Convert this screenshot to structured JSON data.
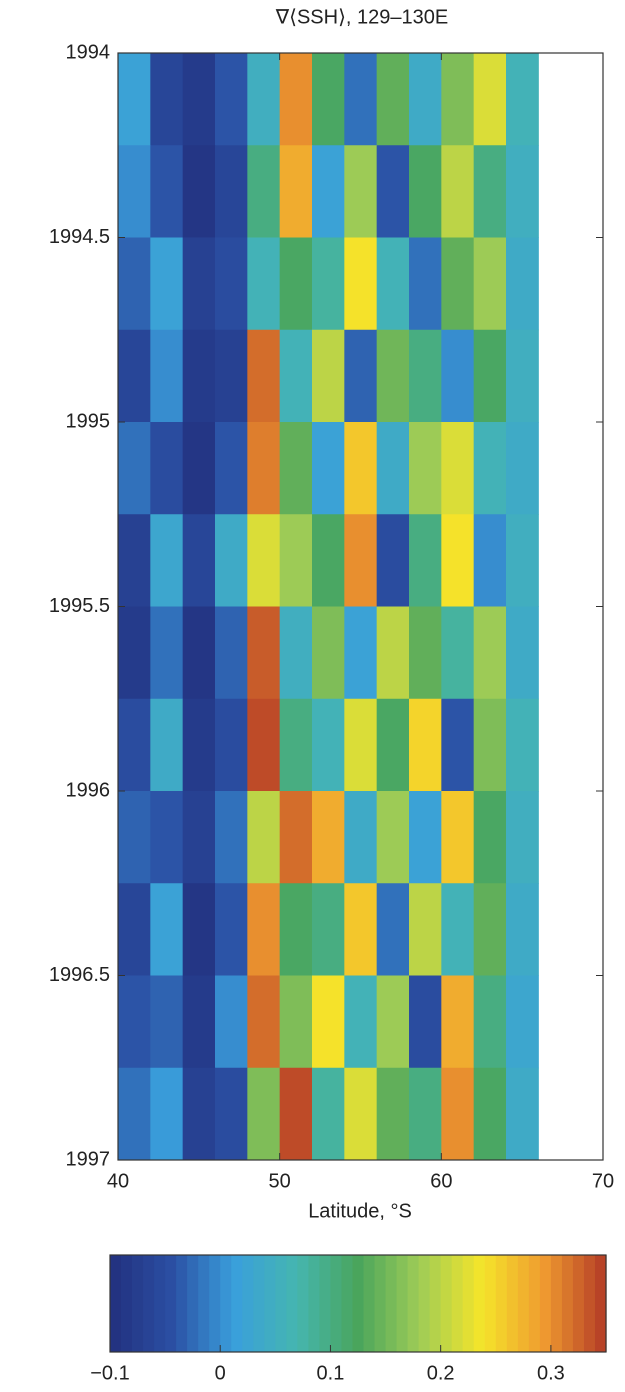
{
  "chart_data": {
    "type": "heatmap",
    "title": "∇⟨SSH⟩, 129–130E",
    "xlabel": "Latitude, °S",
    "x": [
      41,
      43,
      45,
      47,
      49,
      51,
      53,
      55,
      57,
      59,
      61,
      63,
      65
    ],
    "y": [
      1994.125,
      1994.375,
      1994.625,
      1994.875,
      1995.125,
      1995.375,
      1995.625,
      1995.875,
      1996.125,
      1996.375,
      1996.625,
      1996.875
    ],
    "values": [
      [
        0.02,
        -0.06,
        -0.08,
        -0.04,
        0.05,
        0.3,
        0.12,
        -0.02,
        0.14,
        0.04,
        0.16,
        0.22,
        0.06
      ],
      [
        0.0,
        -0.04,
        -0.09,
        -0.06,
        0.1,
        0.28,
        0.02,
        0.18,
        -0.04,
        0.12,
        0.2,
        0.1,
        0.05
      ],
      [
        -0.03,
        0.02,
        -0.07,
        -0.05,
        0.06,
        0.12,
        0.08,
        0.24,
        0.06,
        -0.02,
        0.14,
        0.18,
        0.04
      ],
      [
        -0.06,
        0.0,
        -0.08,
        -0.07,
        0.32,
        0.06,
        0.2,
        -0.03,
        0.15,
        0.1,
        0.0,
        0.12,
        0.05
      ],
      [
        -0.02,
        -0.05,
        -0.09,
        -0.04,
        0.31,
        0.14,
        0.02,
        0.26,
        0.04,
        0.18,
        0.22,
        0.06,
        0.04
      ],
      [
        -0.07,
        0.03,
        -0.06,
        0.04,
        0.22,
        0.18,
        0.12,
        0.3,
        -0.05,
        0.1,
        0.24,
        0.0,
        0.05
      ],
      [
        -0.08,
        -0.02,
        -0.09,
        -0.03,
        0.33,
        0.05,
        0.16,
        0.02,
        0.2,
        0.14,
        0.08,
        0.18,
        0.04
      ],
      [
        -0.05,
        0.04,
        -0.08,
        -0.05,
        0.34,
        0.1,
        0.06,
        0.22,
        0.12,
        0.25,
        -0.04,
        0.16,
        0.06
      ],
      [
        -0.03,
        -0.04,
        -0.07,
        -0.02,
        0.2,
        0.32,
        0.28,
        0.04,
        0.18,
        0.02,
        0.26,
        0.12,
        0.05
      ],
      [
        -0.06,
        0.02,
        -0.09,
        -0.04,
        0.3,
        0.12,
        0.1,
        0.26,
        -0.02,
        0.2,
        0.06,
        0.14,
        0.04
      ],
      [
        -0.04,
        -0.03,
        -0.08,
        0.0,
        0.32,
        0.16,
        0.24,
        0.06,
        0.18,
        -0.05,
        0.28,
        0.1,
        0.03
      ],
      [
        -0.02,
        0.01,
        -0.07,
        -0.05,
        0.16,
        0.34,
        0.08,
        0.22,
        0.14,
        0.1,
        0.3,
        0.12,
        0.04
      ]
    ],
    "xlim": [
      40,
      70
    ],
    "xticks": [
      40,
      50,
      60,
      70
    ],
    "ylim": [
      1994,
      1997
    ],
    "y_reversed": true,
    "yticks": [
      1994,
      1994.5,
      1995,
      1995.5,
      1996,
      1996.5,
      1997
    ],
    "colormap": [
      "#22307e",
      "#2b4fa3",
      "#3a9fdc",
      "#45b6b0",
      "#4aa55c",
      "#9fcc56",
      "#f5e52a",
      "#ef9a30",
      "#b33a26"
    ],
    "clim": [
      -0.1,
      0.35
    ],
    "cticks": [
      {
        "value": -0.1,
        "label": "−0.1"
      },
      0,
      0.1,
      0.2,
      0.3
    ]
  }
}
